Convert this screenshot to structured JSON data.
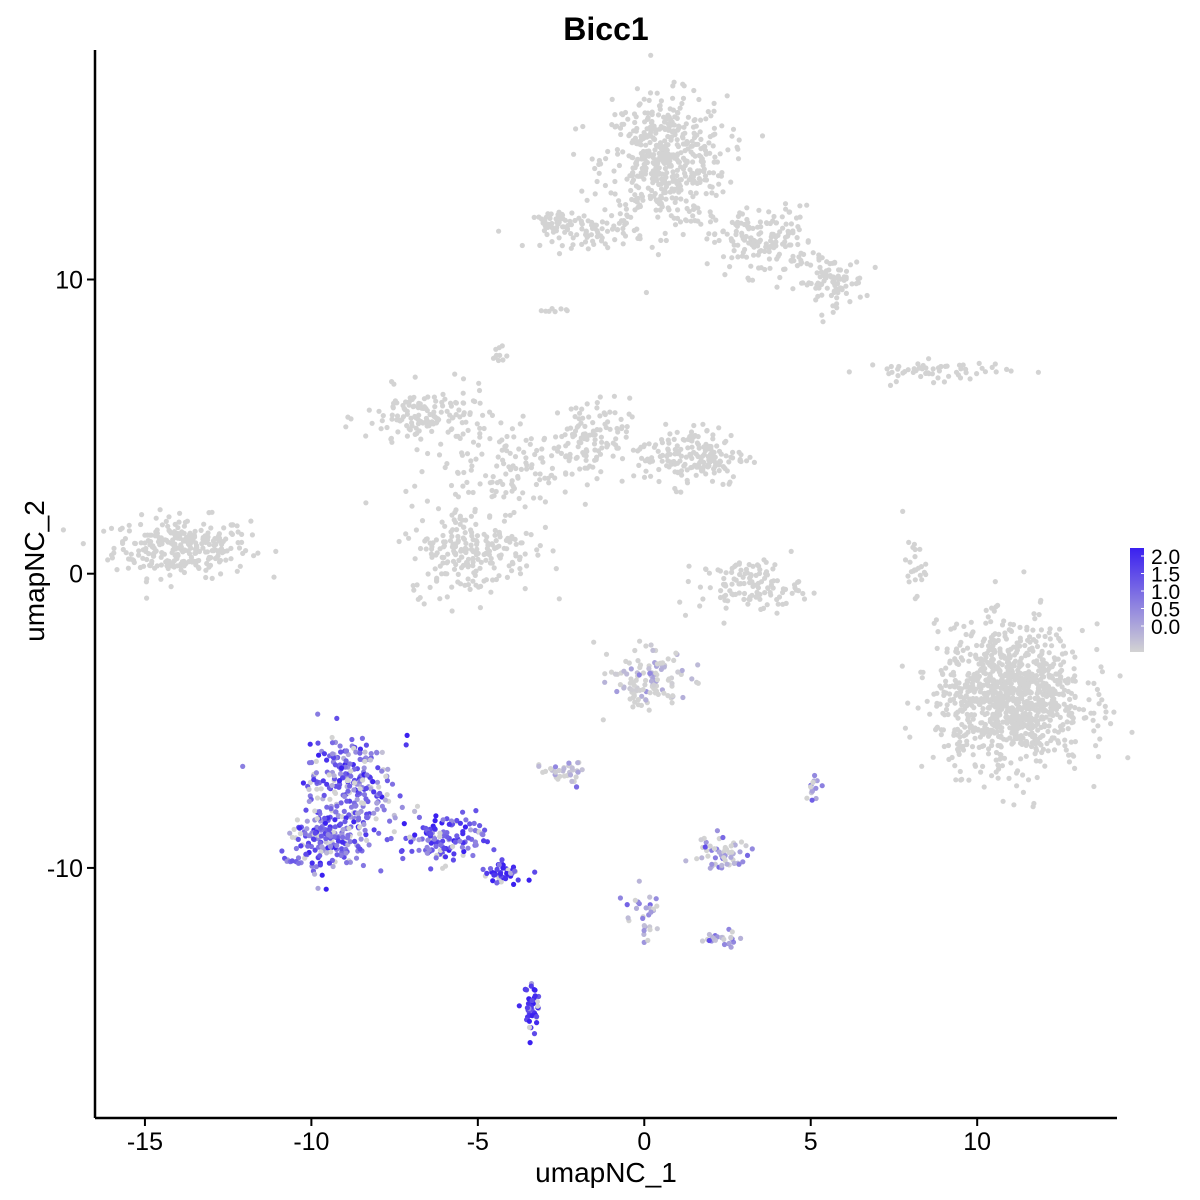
{
  "chart_data": {
    "type": "scatter",
    "title": "Bicc1",
    "xlabel": "umapNC_1",
    "ylabel": "umapNC_2",
    "xlim": [
      -16.5,
      14.2
    ],
    "ylim": [
      -18.5,
      17.8
    ],
    "xticks": [
      -15,
      -10,
      -5,
      0,
      5,
      10
    ],
    "yticks": [
      -10,
      0,
      10
    ],
    "grid": false,
    "legend": {
      "placement": "right",
      "type": "colorbar",
      "low_color": "#d3d3d3",
      "high_color": "#3a20f0",
      "range": [
        0,
        2.0
      ],
      "ticks": [
        "2.0",
        "1.5",
        "1.0",
        "0.5",
        "0.0"
      ]
    },
    "series": [
      {
        "clusters": [
          {
            "cx": -13.9,
            "cy": 0.9,
            "sx": 1.2,
            "sy": 0.6,
            "n": 280,
            "expr": 0
          },
          {
            "cx": 0.6,
            "cy": 14.0,
            "sx": 1.1,
            "sy": 1.3,
            "n": 520,
            "expr": 0
          },
          {
            "cx": 3.6,
            "cy": 11.3,
            "sx": 0.9,
            "sy": 0.7,
            "n": 160,
            "expr": 0
          },
          {
            "cx": 5.6,
            "cy": 9.9,
            "sx": 0.6,
            "sy": 0.5,
            "n": 90,
            "expr": 0
          },
          {
            "cx": -1.5,
            "cy": 11.6,
            "sx": 0.9,
            "sy": 0.3,
            "n": 70,
            "expr": 0
          },
          {
            "cx": 8.8,
            "cy": 6.9,
            "sx": 1.3,
            "sy": 0.2,
            "n": 60,
            "expr": 0
          },
          {
            "cx": -6.5,
            "cy": 5.3,
            "sx": 1.1,
            "sy": 0.6,
            "n": 150,
            "expr": 0
          },
          {
            "cx": -4.0,
            "cy": 3.6,
            "sx": 1.4,
            "sy": 0.8,
            "n": 120,
            "expr": 0
          },
          {
            "cx": -1.8,
            "cy": 4.6,
            "sx": 0.8,
            "sy": 0.8,
            "n": 110,
            "expr": 0
          },
          {
            "cx": 1.4,
            "cy": 4.0,
            "sx": 1.0,
            "sy": 0.6,
            "n": 180,
            "expr": 0
          },
          {
            "cx": -5.2,
            "cy": 0.8,
            "sx": 1.1,
            "sy": 0.9,
            "n": 230,
            "expr": 0
          },
          {
            "cx": 3.2,
            "cy": -0.4,
            "sx": 0.9,
            "sy": 0.5,
            "n": 120,
            "expr": 0
          },
          {
            "cx": 8.1,
            "cy": 0.3,
            "sx": 0.2,
            "sy": 0.6,
            "n": 25,
            "expr": 0
          },
          {
            "cx": 11.0,
            "cy": -4.2,
            "sx": 1.3,
            "sy": 1.4,
            "n": 1050,
            "expr": 0
          },
          {
            "cx": 0.1,
            "cy": -3.6,
            "sx": 0.7,
            "sy": 0.6,
            "n": 120,
            "expr": 0.05
          },
          {
            "cx": -2.4,
            "cy": -6.8,
            "sx": 0.4,
            "sy": 0.25,
            "n": 35,
            "expr": 0.1
          },
          {
            "cx": -8.8,
            "cy": -7.2,
            "sx": 0.8,
            "sy": 1.0,
            "n": 260,
            "expr": 1.1
          },
          {
            "cx": -9.6,
            "cy": -9.0,
            "sx": 0.7,
            "sy": 0.6,
            "n": 180,
            "expr": 1.2
          },
          {
            "cx": -6.0,
            "cy": -9.0,
            "sx": 0.8,
            "sy": 0.45,
            "n": 130,
            "expr": 1.35
          },
          {
            "cx": -4.2,
            "cy": -10.2,
            "sx": 0.3,
            "sy": 0.2,
            "n": 50,
            "expr": 1.7
          },
          {
            "cx": -3.4,
            "cy": -14.8,
            "sx": 0.18,
            "sy": 0.45,
            "n": 55,
            "expr": 1.75
          },
          {
            "cx": 2.3,
            "cy": -9.5,
            "sx": 0.5,
            "sy": 0.35,
            "n": 55,
            "expr": 0.5
          },
          {
            "cx": 2.4,
            "cy": -12.4,
            "sx": 0.3,
            "sy": 0.15,
            "n": 25,
            "expr": 0.6
          },
          {
            "cx": 0.0,
            "cy": -11.5,
            "sx": 0.35,
            "sy": 0.5,
            "n": 30,
            "expr": 0.35
          },
          {
            "cx": 5.1,
            "cy": -7.3,
            "sx": 0.12,
            "sy": 0.3,
            "n": 14,
            "expr": 0.6
          },
          {
            "cx": -2.7,
            "cy": 11.9,
            "sx": 0.35,
            "sy": 0.3,
            "n": 40,
            "expr": 0
          },
          {
            "cx": -4.4,
            "cy": 7.4,
            "sx": 0.2,
            "sy": 0.2,
            "n": 10,
            "expr": 0
          },
          {
            "cx": -2.7,
            "cy": 8.9,
            "sx": 0.2,
            "sy": 0.1,
            "n": 8,
            "expr": 0
          }
        ]
      }
    ]
  }
}
